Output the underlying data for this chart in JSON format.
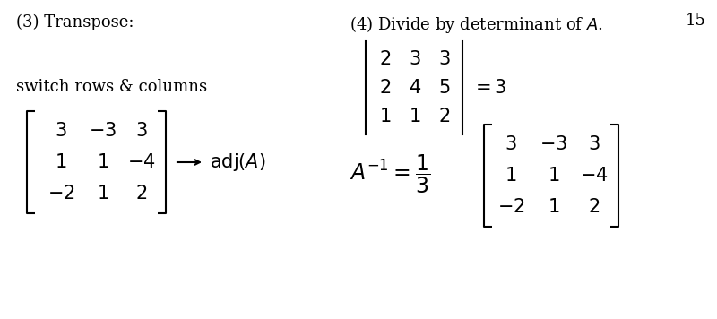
{
  "background_color": "#ffffff",
  "page_number": "15",
  "font_size": 13,
  "font_size_large": 15
}
